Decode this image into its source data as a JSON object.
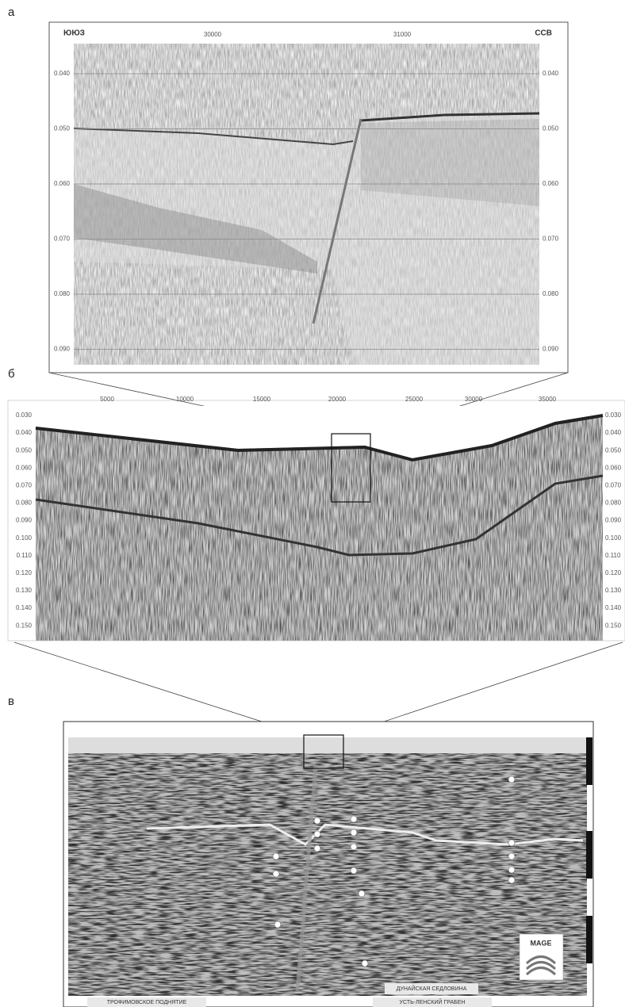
{
  "panels": [
    {
      "label": "а",
      "left_label": "ЮЮЗ",
      "right_label": "ССВ",
      "x_ticks": [
        "30000",
        "31000"
      ],
      "y_ticks": [
        "0.040",
        "0.050",
        "0.060",
        "0.070",
        "0.080",
        "0.090"
      ]
    },
    {
      "label": "б",
      "x_ticks": [
        "5000",
        "10000",
        "15000",
        "20000",
        "25000",
        "30000",
        "35000"
      ],
      "y_ticks": [
        "0.030",
        "0.040",
        "0.050",
        "0.060",
        "0.070",
        "0.080",
        "0.090",
        "0.100",
        "0.110",
        "0.120",
        "0.130",
        "0.140",
        "0.150"
      ]
    },
    {
      "label": "в",
      "logo": "MAGE",
      "regions": [
        "ТРОФИМОВСКОЕ ПОДНЯТИЕ",
        "ДУНАЙСКАЯ СЕДЛОВИНА",
        "УСТЬ-ЛЕНСКИЙ ГРАБЕН"
      ]
    }
  ]
}
